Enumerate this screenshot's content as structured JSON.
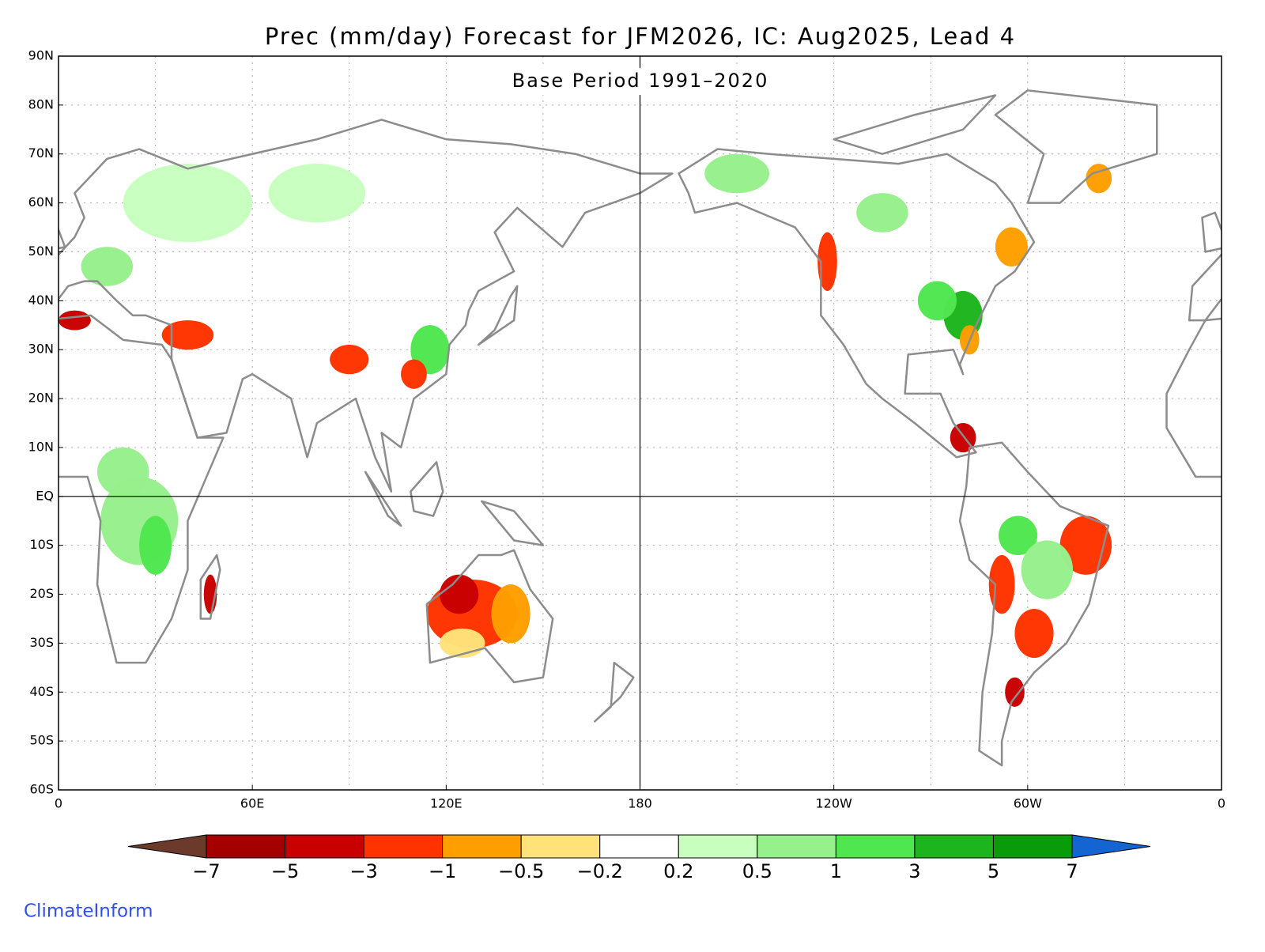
{
  "title": "Prec (mm/day) Forecast for JFM2026, IC: Aug2025, Lead 4",
  "subtitle": "Base Period 1991–2020",
  "lat_labels": [
    "90N",
    "80N",
    "70N",
    "60N",
    "50N",
    "40N",
    "30N",
    "20N",
    "10N",
    "EQ",
    "10S",
    "20S",
    "30S",
    "40S",
    "50S",
    "60S"
  ],
  "lon_labels": [
    "0",
    "60E",
    "120E",
    "180",
    "120W",
    "60W",
    "0"
  ],
  "colorbar": {
    "labels": [
      "−7",
      "−5",
      "−3",
      "−1",
      "−0.5",
      "−0.2",
      "0.2",
      "0.5",
      "1",
      "3",
      "5",
      "7"
    ],
    "colors": [
      "#6b3a2a",
      "#a50000",
      "#c80000",
      "#ff3300",
      "#ff9e00",
      "#ffe27a",
      "#ffffff",
      "#c8ffbe",
      "#96f08c",
      "#50e650",
      "#1eb41e",
      "#0a9b0a",
      "#1464d2"
    ]
  },
  "credit": "ClimateInform"
}
